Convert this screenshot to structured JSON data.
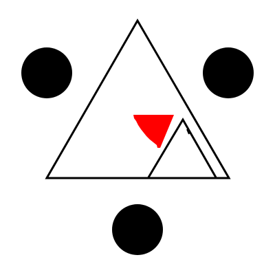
{
  "scene": {
    "background": "#ffffff",
    "stroke_color": "#000000",
    "dot_color": "#000000",
    "pointer_color": "#ff0000"
  },
  "shapes": {
    "outer_triangle": "outline",
    "inner_triangle": "outline",
    "pointer_triangle": "filled",
    "dots": [
      "top-left",
      "top-right",
      "bottom"
    ]
  }
}
